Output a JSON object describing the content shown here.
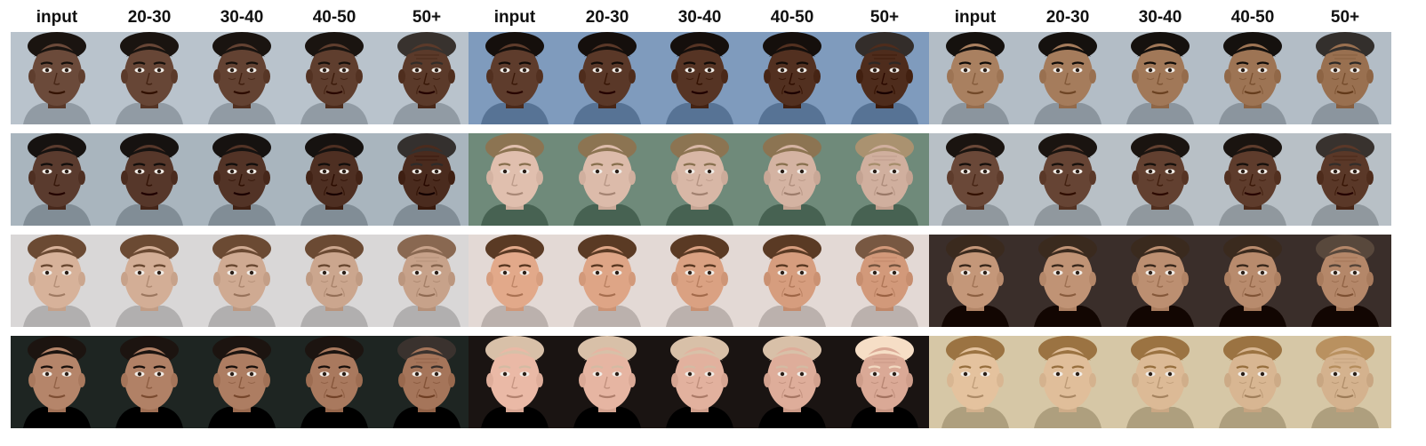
{
  "column_labels": [
    "input",
    "20-30",
    "30-40",
    "40-50",
    "50+"
  ],
  "groups": [
    {
      "rows": [
        {
          "skin": "#6b4a3a",
          "hair": "#1a1410",
          "bg": "#b9c3cc"
        },
        {
          "skin": "#5a3b2e",
          "hair": "#161210",
          "bg": "#a9b5be"
        },
        {
          "skin": "#d7b29a",
          "hair": "#6b4a33",
          "bg": "#d9d7d7"
        },
        {
          "skin": "#b5856a",
          "hair": "#1c1410",
          "bg": "#1e2522"
        }
      ]
    },
    {
      "rows": [
        {
          "skin": "#5e3c2c",
          "hair": "#150f0c",
          "bg": "#7f9bbd"
        },
        {
          "skin": "#e0bfae",
          "hair": "#8c7452",
          "bg": "#6f8a7a"
        },
        {
          "skin": "#e2a98a",
          "hair": "#5a3a24",
          "bg": "#e3d9d5"
        },
        {
          "skin": "#eab9a6",
          "hair": "#d8c0a8",
          "bg": "#1a1412"
        }
      ]
    },
    {
      "rows": [
        {
          "skin": "#a98060",
          "hair": "#15110e",
          "bg": "#b3bdc6"
        },
        {
          "skin": "#6a4838",
          "hair": "#1a1410",
          "bg": "#b8c0c6"
        },
        {
          "skin": "#c49779",
          "hair": "#3a2a1e",
          "bg": "#3a2e2a"
        },
        {
          "skin": "#e4c29e",
          "hair": "#9b7342",
          "bg": "#d6c7a6"
        }
      ]
    }
  ]
}
